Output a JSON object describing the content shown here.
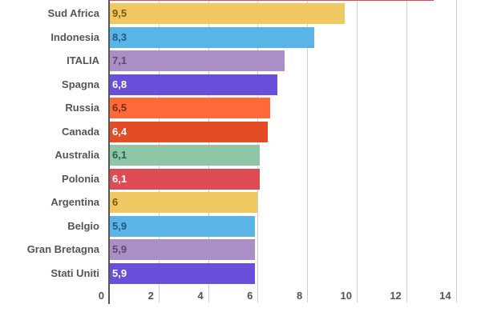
{
  "chart_data": {
    "type": "bar",
    "orientation": "horizontal",
    "title": "",
    "xlabel": "",
    "ylabel": "",
    "xlim": [
      0,
      14
    ],
    "grid": true,
    "legend": "none",
    "x_ticks": [
      "0",
      "2",
      "4",
      "6",
      "8",
      "10",
      "12",
      "14"
    ],
    "categories": [
      "(cut off)",
      "Sud Africa",
      "Indonesia",
      "ITALIA",
      "Spagna",
      "Russia",
      "Canada",
      "Australia",
      "Polonia",
      "Argentina",
      "Belgio",
      "Gran Bretagna",
      "Stati Uniti"
    ],
    "values": [
      13.1,
      9.5,
      8.3,
      7.1,
      6.8,
      6.5,
      6.4,
      6.1,
      6.1,
      6.0,
      5.9,
      5.9,
      5.9
    ],
    "value_labels": [
      "",
      "9,5",
      "8,3",
      "7,1",
      "6,8",
      "6,5",
      "6,4",
      "6,1",
      "6,1",
      "6",
      "5,9",
      "5,9",
      "5,9"
    ],
    "colors": [
      "#dd4b50",
      "#f0c862",
      "#5ab4e5",
      "#a98fc6",
      "#6a4fdb",
      "#ff6a3a",
      "#e34d26",
      "#8dc7a8",
      "#dd4b56",
      "#f0c862",
      "#5ab4e5",
      "#a98fc6",
      "#6a4fdb"
    ],
    "label_colors": [
      "#ffffff",
      "#7a5a10",
      "#1f5a80",
      "#5a4a70",
      "#ffffff",
      "#7a2a10",
      "#ffffff",
      "#2f5f48",
      "#ffffff",
      "#7a5a10",
      "#1f5a80",
      "#5a4a70",
      "#ffffff"
    ]
  }
}
